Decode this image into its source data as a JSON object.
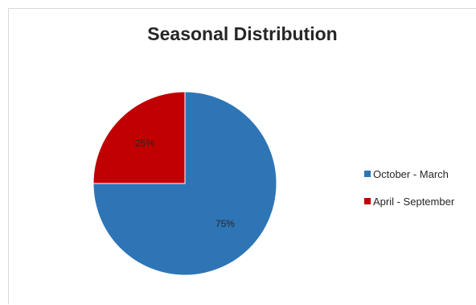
{
  "chart_data": {
    "type": "pie",
    "title": "Seasonal Distribution",
    "categories": [
      "October - March",
      "April - September"
    ],
    "values": [
      75,
      25
    ],
    "data_labels": [
      "75%",
      "25%"
    ],
    "colors": [
      "#2e75b6",
      "#c00000"
    ],
    "legend_position": "right"
  }
}
